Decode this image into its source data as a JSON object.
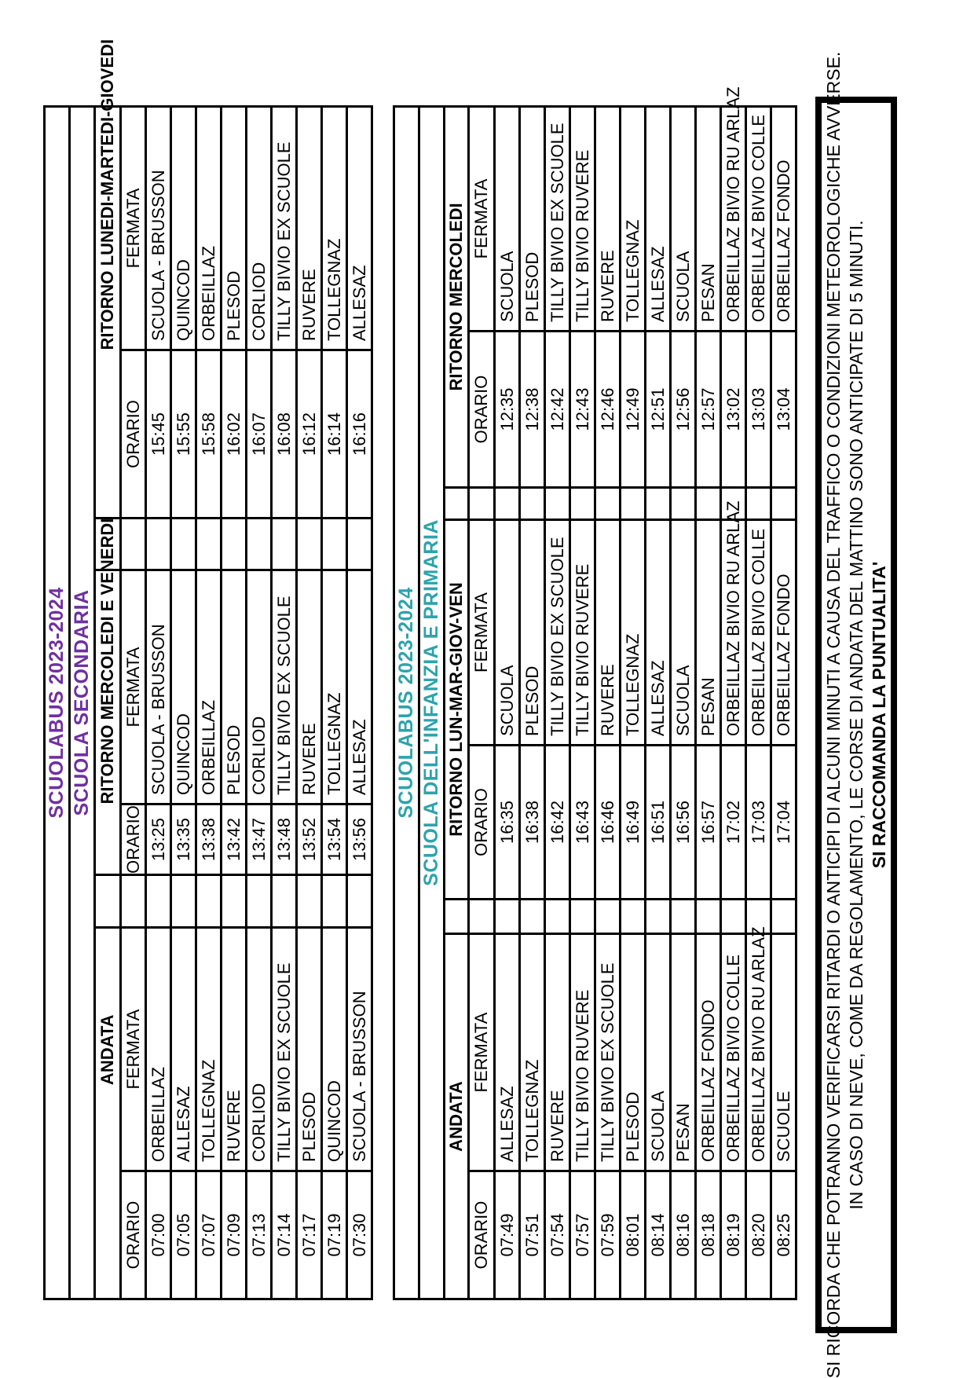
{
  "document": {
    "kind": "school-bus-timetable",
    "tables": [
      {
        "title": "SCUOLABUS 2023-2024",
        "subtitle": "SCUOLA SECONDARIA",
        "accent_color": "#7030A0",
        "section_label_align": "fermata",
        "col_headers": [
          "ORARIO",
          "FERMATA"
        ],
        "sections": [
          {
            "label": "ANDATA",
            "rows": [
              [
                "07:00",
                "ORBEILLAZ"
              ],
              [
                "07:05",
                "ALLESAZ"
              ],
              [
                "07:07",
                "TOLLEGNAZ"
              ],
              [
                "07:09",
                "RUVERE"
              ],
              [
                "07:13",
                "CORLIOD"
              ],
              [
                "07:14",
                "TILLY BIVIO EX SCUOLE"
              ],
              [
                "07:17",
                "PLESOD"
              ],
              [
                "07:19",
                "QUINCOD"
              ],
              [
                "07:30",
                "SCUOLA - BRUSSON"
              ]
            ]
          },
          {
            "label": "RITORNO MERCOLEDI E VENERDI",
            "rows": [
              [
                "13:25",
                "SCUOLA - BRUSSON"
              ],
              [
                "13:35",
                "QUINCOD"
              ],
              [
                "13:38",
                "ORBEILLAZ"
              ],
              [
                "13:42",
                "PLESOD"
              ],
              [
                "13:47",
                "CORLIOD"
              ],
              [
                "13:48",
                "TILLY BIVIO EX SCUOLE"
              ],
              [
                "13:52",
                "RUVERE"
              ],
              [
                "13:54",
                "TOLLEGNAZ"
              ],
              [
                "13:56",
                "ALLESAZ"
              ]
            ]
          },
          {
            "label": "RITORNO LUNEDI-MARTEDI-GIOVEDI",
            "rows": [
              [
                "15:45",
                "SCUOLA - BRUSSON"
              ],
              [
                "15:55",
                "QUINCOD"
              ],
              [
                "15:58",
                "ORBEILLAZ"
              ],
              [
                "16:02",
                "PLESOD"
              ],
              [
                "16:07",
                "CORLIOD"
              ],
              [
                "16:08",
                "TILLY BIVIO EX SCUOLE"
              ],
              [
                "16:12",
                "RUVERE"
              ],
              [
                "16:14",
                "TOLLEGNAZ"
              ],
              [
                "16:16",
                "ALLESAZ"
              ]
            ]
          }
        ]
      },
      {
        "title": "SCUOLABUS 2023-2024",
        "subtitle": "SCUOLA DELL'INFANZIA E PRIMARIA",
        "accent_color": "#2DA3AC",
        "section_label_align": "group",
        "col_headers": [
          "ORARIO",
          "FERMATA"
        ],
        "sections": [
          {
            "label": "ANDATA",
            "rows": [
              [
                "07:49",
                "ALLESAZ"
              ],
              [
                "07:51",
                "TOLLEGNAZ"
              ],
              [
                "07:54",
                "RUVERE"
              ],
              [
                "07:57",
                "TILLY BIVIO RUVERE"
              ],
              [
                "07:59",
                "TILLY BIVIO EX SCUOLE"
              ],
              [
                "08:01",
                "PLESOD"
              ],
              [
                "08:14",
                "SCUOLA"
              ],
              [
                "08:16",
                "PESAN"
              ],
              [
                "08:18",
                "ORBEILLAZ FONDO"
              ],
              [
                "08:19",
                "ORBEILLAZ BIVIO COLLE"
              ],
              [
                "08:20",
                "ORBEILLAZ BIVIO RU ARLAZ"
              ],
              [
                "08:25",
                "SCUOLE"
              ]
            ]
          },
          {
            "label": "RITORNO LUN-MAR-GIOV-VEN",
            "rows": [
              [
                "16:35",
                "SCUOLA"
              ],
              [
                "16:38",
                "PLESOD"
              ],
              [
                "16:42",
                "TILLY BIVIO EX SCUOLE"
              ],
              [
                "16:43",
                "TILLY BIVIO RUVERE"
              ],
              [
                "16:46",
                "RUVERE"
              ],
              [
                "16:49",
                "TOLLEGNAZ"
              ],
              [
                "16:51",
                "ALLESAZ"
              ],
              [
                "16:56",
                "SCUOLA"
              ],
              [
                "16:57",
                "PESAN"
              ],
              [
                "17:02",
                "ORBEILLAZ BIVIO RU ARLAZ"
              ],
              [
                "17:03",
                "ORBEILLAZ BIVIO COLLE"
              ],
              [
                "17:04",
                "ORBEILLAZ FONDO"
              ]
            ]
          },
          {
            "label": "RITORNO MERCOLEDI",
            "rows": [
              [
                "12:35",
                "SCUOLA"
              ],
              [
                "12:38",
                "PLESOD"
              ],
              [
                "12:42",
                "TILLY BIVIO EX SCUOLE"
              ],
              [
                "12:43",
                "TILLY BIVIO RUVERE"
              ],
              [
                "12:46",
                "RUVERE"
              ],
              [
                "12:49",
                "TOLLEGNAZ"
              ],
              [
                "12:51",
                "ALLESAZ"
              ],
              [
                "12:56",
                "SCUOLA"
              ],
              [
                "12:57",
                "PESAN"
              ],
              [
                "13:02",
                "ORBEILLAZ BIVIO RU ARLAZ"
              ],
              [
                "13:03",
                "ORBEILLAZ BIVIO COLLE"
              ],
              [
                "13:04",
                "ORBEILLAZ FONDO"
              ]
            ]
          }
        ]
      }
    ],
    "note": {
      "lines": [
        "SI RICORDA CHE POTRANNO VERIFICARSI RITARDI O ANTICIPI DI ALCUNI MINUTI A CAUSA DEL TRAFFICO O CONDIZIONI METEOROLOGICHE AVVERSE.",
        "IN CASO DI NEVE, COME DA REGOLAMENTO, LE CORSE DI ANDATA DEL MATTINO SONO ANTICIPATE DI 5 MINUTI.",
        "SI RACCOMANDA LA PUNTUALITA'"
      ]
    },
    "border_color": "#000000"
  }
}
